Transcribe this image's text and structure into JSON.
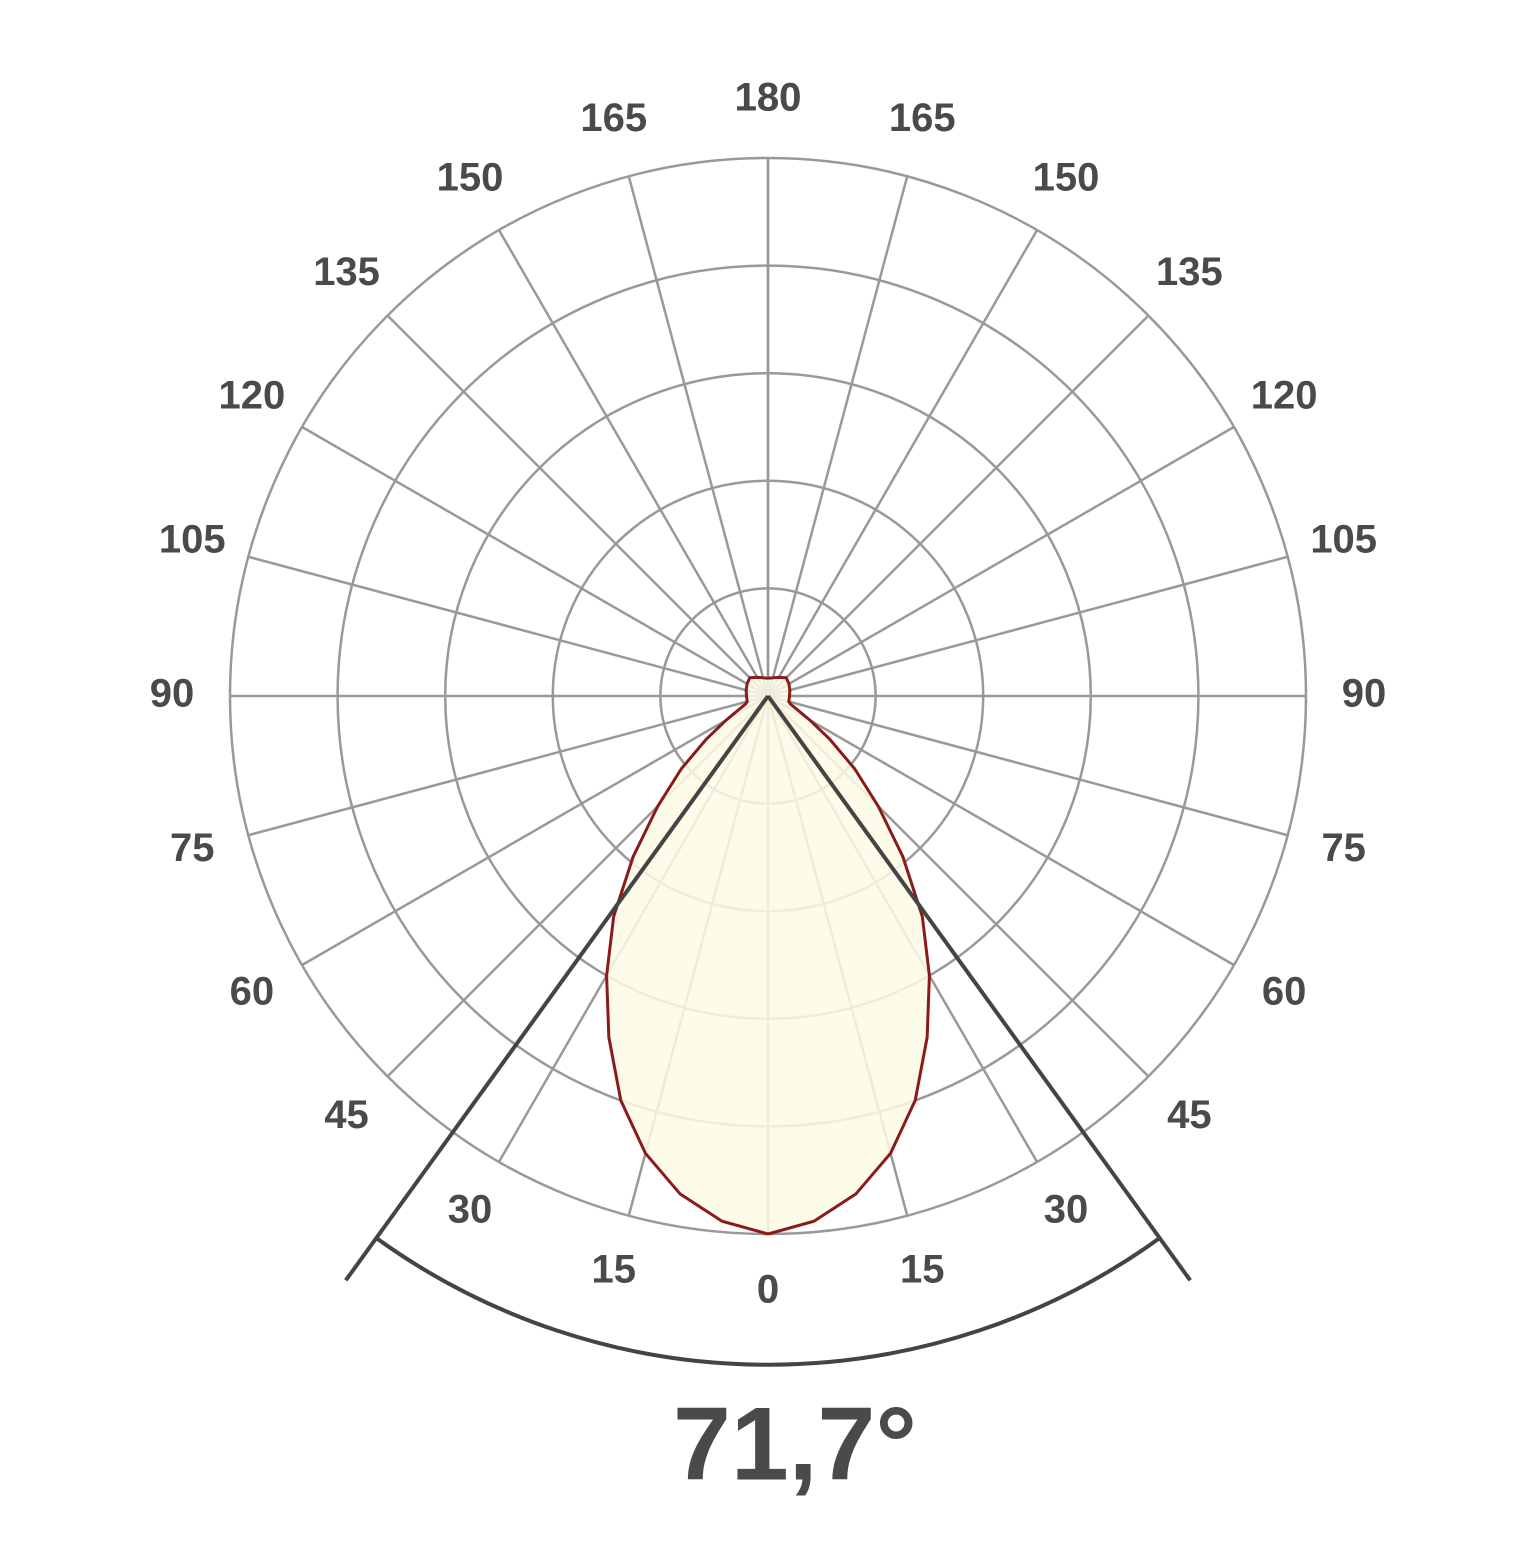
{
  "chart_data": {
    "type": "polar",
    "x": [
      0,
      5,
      10,
      15,
      20,
      25,
      30,
      35,
      40,
      45,
      50,
      55,
      60,
      65,
      70,
      75,
      90,
      105,
      120,
      135,
      150,
      165,
      180
    ],
    "values": [
      1.0,
      0.98,
      0.94,
      0.88,
      0.8,
      0.7,
      0.6,
      0.5,
      0.39,
      0.29,
      0.21,
      0.14,
      0.09,
      0.06,
      0.045,
      0.04,
      0.04,
      0.042,
      0.045,
      0.048,
      0.04,
      0.035,
      0.033
    ],
    "rlim": [
      0,
      1
    ],
    "thetaticks": [
      0,
      15,
      30,
      45,
      60,
      75,
      90,
      105,
      120,
      135,
      150,
      165,
      180
    ],
    "beam_angle": 71.7,
    "beam_angle_label": "71,7°",
    "fill_color": "#fdfbe6",
    "line_color": "#8b1a1a",
    "grid": true
  }
}
